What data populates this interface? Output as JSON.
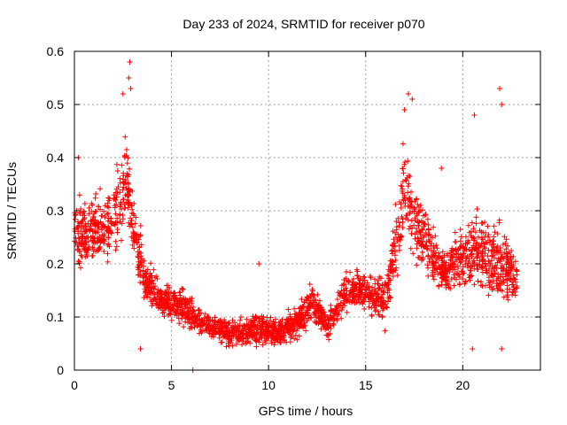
{
  "chart_data": {
    "type": "scatter",
    "title": "Day 233 of 2024, SRMTID for receiver p070",
    "xlabel": "GPS time / hours",
    "ylabel": "SRMTID / TECUs",
    "xlim": [
      0,
      24
    ],
    "ylim": [
      0,
      0.6
    ],
    "xticks": [
      "0",
      "5",
      "10",
      "15",
      "20"
    ],
    "yticks": [
      "0",
      "0.1",
      "0.2",
      "0.3",
      "0.4",
      "0.5",
      "0.6"
    ],
    "grid": true,
    "marker": "+",
    "colors": {
      "series": "#ff0000",
      "grid": "#a0a0a0"
    },
    "trend": [
      {
        "x": 0.0,
        "y": 0.26,
        "spread": 0.08
      },
      {
        "x": 1.0,
        "y": 0.26,
        "spread": 0.08
      },
      {
        "x": 2.0,
        "y": 0.28,
        "spread": 0.09
      },
      {
        "x": 2.6,
        "y": 0.36,
        "spread": 0.12
      },
      {
        "x": 3.0,
        "y": 0.28,
        "spread": 0.09
      },
      {
        "x": 3.6,
        "y": 0.17,
        "spread": 0.06
      },
      {
        "x": 4.5,
        "y": 0.13,
        "spread": 0.04
      },
      {
        "x": 5.5,
        "y": 0.12,
        "spread": 0.05
      },
      {
        "x": 6.5,
        "y": 0.09,
        "spread": 0.03
      },
      {
        "x": 8.0,
        "y": 0.07,
        "spread": 0.03
      },
      {
        "x": 9.5,
        "y": 0.08,
        "spread": 0.04
      },
      {
        "x": 10.5,
        "y": 0.07,
        "spread": 0.03
      },
      {
        "x": 11.5,
        "y": 0.09,
        "spread": 0.04
      },
      {
        "x": 12.2,
        "y": 0.13,
        "spread": 0.05
      },
      {
        "x": 13.0,
        "y": 0.08,
        "spread": 0.03
      },
      {
        "x": 14.0,
        "y": 0.15,
        "spread": 0.05
      },
      {
        "x": 15.0,
        "y": 0.15,
        "spread": 0.05
      },
      {
        "x": 16.0,
        "y": 0.13,
        "spread": 0.06
      },
      {
        "x": 17.0,
        "y": 0.33,
        "spread": 0.13
      },
      {
        "x": 18.0,
        "y": 0.25,
        "spread": 0.09
      },
      {
        "x": 19.0,
        "y": 0.18,
        "spread": 0.05
      },
      {
        "x": 20.0,
        "y": 0.22,
        "spread": 0.08
      },
      {
        "x": 21.0,
        "y": 0.22,
        "spread": 0.1
      },
      {
        "x": 22.0,
        "y": 0.2,
        "spread": 0.1
      },
      {
        "x": 22.8,
        "y": 0.17,
        "spread": 0.05
      }
    ],
    "peaks": [
      {
        "x": 2.85,
        "y": 0.58
      },
      {
        "x": 2.8,
        "y": 0.55
      },
      {
        "x": 2.9,
        "y": 0.53
      },
      {
        "x": 2.5,
        "y": 0.52
      },
      {
        "x": 0.2,
        "y": 0.4
      },
      {
        "x": 17.2,
        "y": 0.52
      },
      {
        "x": 17.4,
        "y": 0.51
      },
      {
        "x": 17.0,
        "y": 0.49
      },
      {
        "x": 20.6,
        "y": 0.48
      },
      {
        "x": 21.9,
        "y": 0.53
      },
      {
        "x": 22.0,
        "y": 0.5
      },
      {
        "x": 9.5,
        "y": 0.2
      },
      {
        "x": 6.1,
        "y": 0.0
      },
      {
        "x": 3.4,
        "y": 0.04
      },
      {
        "x": 20.5,
        "y": 0.04
      },
      {
        "x": 22.0,
        "y": 0.04
      },
      {
        "x": 18.9,
        "y": 0.38
      }
    ]
  }
}
